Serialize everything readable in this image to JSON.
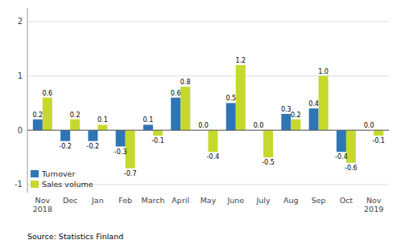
{
  "chart_data": {
    "type": "bar",
    "categories": [
      "Nov\n2018",
      "Dec",
      "Jan",
      "Feb",
      "March",
      "April",
      "May",
      "June",
      "July",
      "Aug",
      "Sep",
      "Oct",
      "Nov\n2019"
    ],
    "series": [
      {
        "name": "Turnover",
        "color": "#2E75B6",
        "values": [
          0.2,
          -0.2,
          -0.2,
          -0.3,
          0.1,
          0.6,
          0.0,
          0.5,
          0.0,
          0.3,
          0.4,
          -0.4,
          0.0
        ],
        "value_labels": [
          "0.2",
          "-0.2",
          "-0.2",
          "-0.3",
          "0.1",
          "0.6",
          "0.0",
          "0.5",
          "0.0",
          "0.3",
          "0.4",
          "-0.4",
          "0.0"
        ]
      },
      {
        "name": "Sales volume",
        "color": "#C5D92D",
        "values": [
          0.6,
          0.2,
          0.1,
          -0.7,
          -0.1,
          0.8,
          -0.4,
          1.2,
          -0.5,
          0.2,
          1.0,
          -0.6,
          -0.1
        ],
        "value_labels": [
          "0.6",
          "0.2",
          "0.1",
          "-0.7",
          "-0.1",
          "0.8",
          "-0.4",
          "1.2",
          "-0.5",
          "0.2",
          "1.0",
          "-0.6",
          "-0.1"
        ]
      }
    ],
    "ylim": [
      -1.15,
      2.25
    ],
    "yticks": [
      -1,
      0,
      1,
      2
    ],
    "grid": true,
    "legend": "lower left",
    "data_labels": true,
    "annotations": [
      "Source: Statistics Finland"
    ]
  }
}
